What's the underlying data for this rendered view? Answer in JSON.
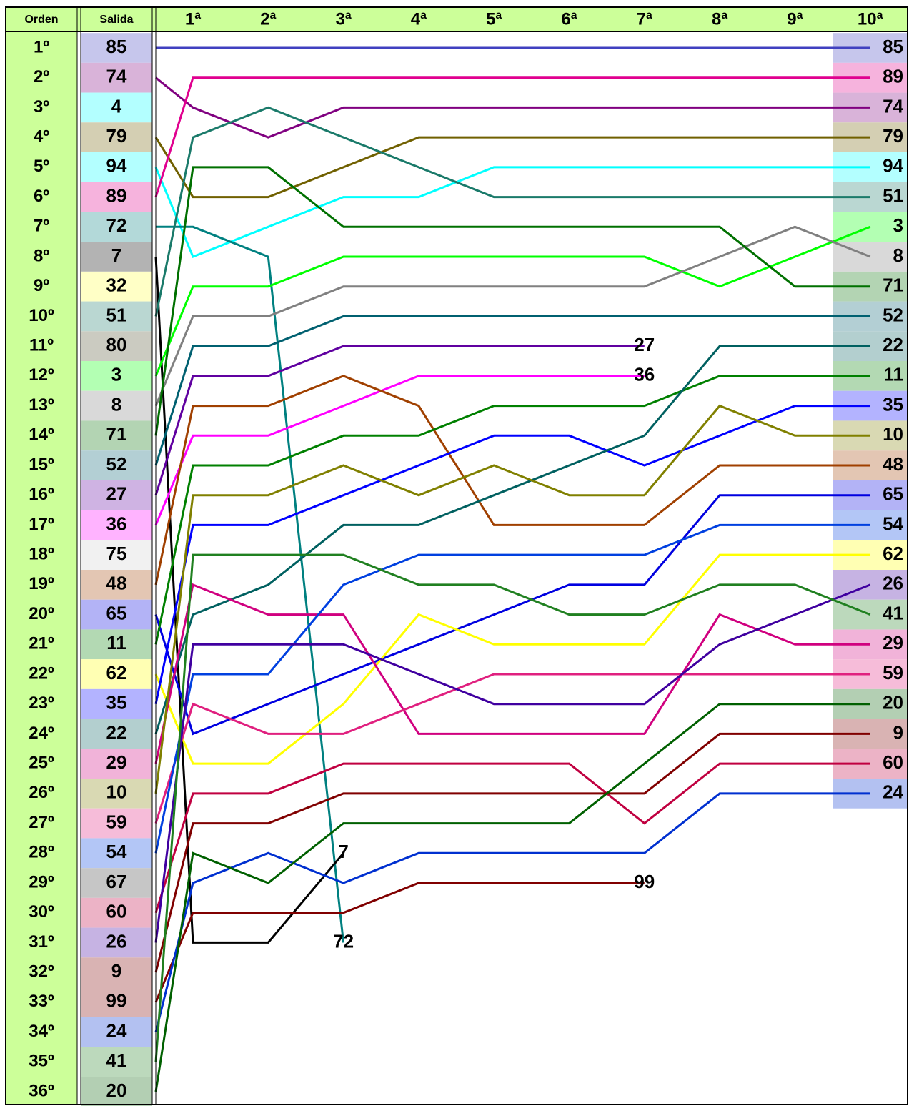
{
  "chart_data": {
    "type": "bump",
    "ylabel": "Orden",
    "categories": [
      "Salida",
      "1ª",
      "2ª",
      "3ª",
      "4ª",
      "5ª",
      "6ª",
      "7ª",
      "8ª",
      "9ª",
      "10ª"
    ],
    "ylim": [
      1,
      36
    ],
    "yticks": [
      {
        "value": 1,
        "label": "1º"
      },
      {
        "value": 2,
        "label": "2º"
      },
      {
        "value": 3,
        "label": "3º"
      },
      {
        "value": 4,
        "label": "4º"
      },
      {
        "value": 5,
        "label": "5º"
      },
      {
        "value": 6,
        "label": "6º"
      },
      {
        "value": 7,
        "label": "7º"
      },
      {
        "value": 8,
        "label": "8º"
      },
      {
        "value": 9,
        "label": "9º"
      },
      {
        "value": 10,
        "label": "10º"
      },
      {
        "value": 11,
        "label": "11º"
      },
      {
        "value": 12,
        "label": "12º"
      },
      {
        "value": 13,
        "label": "13º"
      },
      {
        "value": 14,
        "label": "14º"
      },
      {
        "value": 15,
        "label": "15º"
      },
      {
        "value": 16,
        "label": "16º"
      },
      {
        "value": 17,
        "label": "17º"
      },
      {
        "value": 18,
        "label": "18º"
      },
      {
        "value": 19,
        "label": "19º"
      },
      {
        "value": 20,
        "label": "20º"
      },
      {
        "value": 21,
        "label": "21º"
      },
      {
        "value": 22,
        "label": "22º"
      },
      {
        "value": 23,
        "label": "23º"
      },
      {
        "value": 24,
        "label": "24º"
      },
      {
        "value": 25,
        "label": "25º"
      },
      {
        "value": 26,
        "label": "26º"
      },
      {
        "value": 27,
        "label": "27º"
      },
      {
        "value": 28,
        "label": "28º"
      },
      {
        "value": 29,
        "label": "29º"
      },
      {
        "value": 30,
        "label": "30º"
      },
      {
        "value": 31,
        "label": "31º"
      },
      {
        "value": 32,
        "label": "32º"
      },
      {
        "value": 33,
        "label": "33º"
      },
      {
        "value": 34,
        "label": "34º"
      },
      {
        "value": 35,
        "label": "35º"
      },
      {
        "value": 36,
        "label": "36º"
      }
    ],
    "series": [
      {
        "name": "85",
        "color": "#4040c0",
        "values": [
          1,
          1,
          1,
          1,
          1,
          1,
          1,
          1,
          1,
          1,
          1
        ]
      },
      {
        "name": "74",
        "color": "#800080",
        "values": [
          2,
          3,
          4,
          3,
          3,
          3,
          3,
          3,
          3,
          3,
          3
        ]
      },
      {
        "name": "4",
        "color": "#00ffff",
        "values": [
          3,
          null,
          null,
          null,
          null,
          null,
          null,
          null,
          null,
          null,
          null
        ]
      },
      {
        "name": "79",
        "color": "#706000",
        "values": [
          4,
          6,
          6,
          5,
          4,
          4,
          4,
          4,
          4,
          4,
          4
        ]
      },
      {
        "name": "94",
        "color": "#00ffff",
        "values": [
          5,
          8,
          7,
          6,
          6,
          5,
          5,
          5,
          5,
          5,
          5
        ]
      },
      {
        "name": "89",
        "color": "#e0008f",
        "values": [
          6,
          2,
          2,
          2,
          2,
          2,
          2,
          2,
          2,
          2,
          2
        ]
      },
      {
        "name": "72",
        "color": "#008080",
        "values": [
          7,
          7,
          8,
          31,
          null,
          null,
          null,
          null,
          null,
          null,
          null
        ]
      },
      {
        "name": "7",
        "color": "#000000",
        "values": [
          8,
          31,
          31,
          28,
          null,
          null,
          null,
          null,
          null,
          null,
          null
        ]
      },
      {
        "name": "32",
        "color": "#ffff40",
        "values": [
          9,
          null,
          null,
          null,
          null,
          null,
          null,
          null,
          null,
          null,
          null
        ]
      },
      {
        "name": "51",
        "color": "#1a7a6a",
        "values": [
          10,
          4,
          3,
          4,
          5,
          6,
          6,
          6,
          6,
          6,
          6
        ]
      },
      {
        "name": "80",
        "color": "#505030",
        "values": [
          11,
          null,
          null,
          null,
          null,
          null,
          null,
          null,
          null,
          null,
          null
        ]
      },
      {
        "name": "3",
        "color": "#00ff00",
        "values": [
          12,
          9,
          9,
          8,
          8,
          8,
          8,
          8,
          9,
          8,
          7
        ]
      },
      {
        "name": "8",
        "color": "#808080",
        "values": [
          13,
          10,
          10,
          9,
          9,
          9,
          9,
          9,
          8,
          7,
          8
        ]
      },
      {
        "name": "71",
        "color": "#007000",
        "values": [
          14,
          5,
          5,
          7,
          7,
          7,
          7,
          7,
          7,
          9,
          9
        ]
      },
      {
        "name": "52",
        "color": "#006070",
        "values": [
          15,
          11,
          11,
          10,
          10,
          10,
          10,
          10,
          10,
          10,
          10
        ]
      },
      {
        "name": "27",
        "color": "#6000a0",
        "values": [
          16,
          12,
          12,
          11,
          11,
          11,
          11,
          11,
          null,
          null,
          null
        ]
      },
      {
        "name": "36",
        "color": "#ff00ff",
        "values": [
          17,
          14,
          14,
          13,
          12,
          12,
          12,
          12,
          null,
          null,
          null
        ]
      },
      {
        "name": "75",
        "color": "#d0d0d0",
        "values": [
          18,
          null,
          null,
          null,
          null,
          null,
          null,
          null,
          null,
          null,
          null
        ]
      },
      {
        "name": "48",
        "color": "#a04000",
        "values": [
          19,
          13,
          13,
          12,
          13,
          17,
          17,
          17,
          15,
          15,
          15
        ]
      },
      {
        "name": "65",
        "color": "#0000e0",
        "values": [
          20,
          24,
          23,
          22,
          21,
          20,
          19,
          19,
          16,
          16,
          16
        ]
      },
      {
        "name": "11",
        "color": "#008000",
        "values": [
          21,
          15,
          15,
          14,
          14,
          13,
          13,
          13,
          12,
          12,
          12
        ]
      },
      {
        "name": "62",
        "color": "#ffff00",
        "values": [
          22,
          25,
          25,
          23,
          20,
          21,
          21,
          21,
          18,
          18,
          18
        ]
      },
      {
        "name": "35",
        "color": "#0000ff",
        "values": [
          23,
          17,
          17,
          16,
          15,
          14,
          14,
          15,
          14,
          13,
          13
        ]
      },
      {
        "name": "22",
        "color": "#006060",
        "values": [
          24,
          20,
          19,
          17,
          17,
          16,
          15,
          14,
          11,
          11,
          11
        ]
      },
      {
        "name": "29",
        "color": "#d0007f",
        "values": [
          25,
          19,
          20,
          20,
          24,
          24,
          24,
          24,
          20,
          21,
          21
        ]
      },
      {
        "name": "10",
        "color": "#808000",
        "values": [
          26,
          16,
          16,
          15,
          16,
          15,
          16,
          16,
          13,
          14,
          14
        ]
      },
      {
        "name": "59",
        "color": "#e0207f",
        "values": [
          27,
          23,
          24,
          24,
          23,
          22,
          22,
          22,
          22,
          22,
          22
        ]
      },
      {
        "name": "54",
        "color": "#0040e0",
        "values": [
          28,
          22,
          22,
          19,
          18,
          18,
          18,
          18,
          17,
          17,
          17
        ]
      },
      {
        "name": "67",
        "color": "#404040",
        "values": [
          29,
          null,
          null,
          null,
          null,
          null,
          null,
          null,
          null,
          null,
          null
        ]
      },
      {
        "name": "60",
        "color": "#c00040",
        "values": [
          30,
          26,
          26,
          25,
          25,
          25,
          25,
          27,
          25,
          25,
          25
        ]
      },
      {
        "name": "26",
        "color": "#4000a0",
        "values": [
          31,
          21,
          21,
          21,
          22,
          23,
          23,
          23,
          21,
          20,
          19
        ]
      },
      {
        "name": "9",
        "color": "#800000",
        "values": [
          32,
          27,
          27,
          26,
          26,
          26,
          26,
          26,
          24,
          24,
          24
        ]
      },
      {
        "name": "99",
        "color": "#800000",
        "values": [
          33,
          30,
          30,
          30,
          29,
          29,
          29,
          29,
          null,
          null,
          null
        ]
      },
      {
        "name": "24",
        "color": "#0030d0",
        "values": [
          34,
          29,
          28,
          29,
          28,
          28,
          28,
          28,
          26,
          26,
          26
        ]
      },
      {
        "name": "41",
        "color": "#208020",
        "values": [
          35,
          18,
          18,
          18,
          19,
          19,
          20,
          20,
          19,
          19,
          20
        ]
      },
      {
        "name": "20",
        "color": "#006000",
        "values": [
          36,
          28,
          29,
          27,
          27,
          27,
          27,
          25,
          23,
          23,
          23
        ]
      }
    ]
  }
}
